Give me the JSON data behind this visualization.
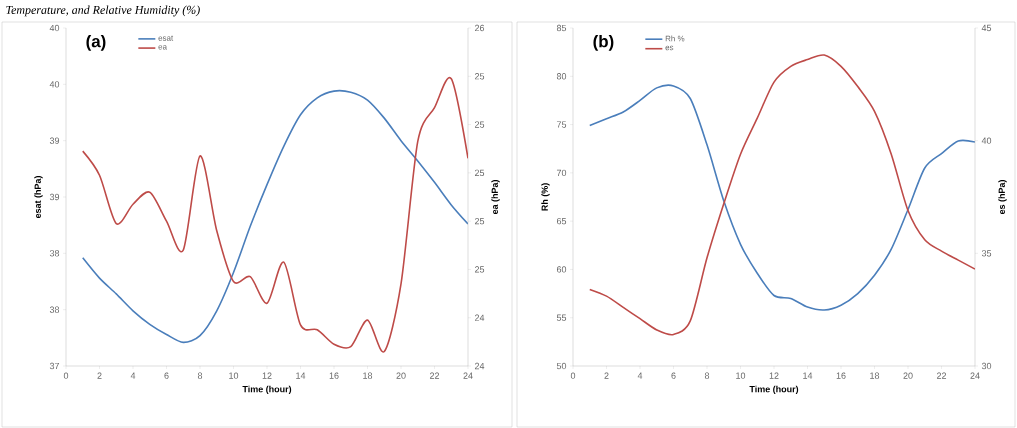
{
  "chart_data": [
    {
      "type": "line",
      "xlabel": "Time (hour)",
      "ylabel": "esat (hPa)",
      "y2label": "ea (hPa)",
      "annotations": [
        "(a)",
        "Temperature, and Relative Humidity (%)"
      ],
      "x": [
        1,
        2,
        3,
        4,
        5,
        6,
        7,
        8,
        9,
        10,
        11,
        12,
        13,
        14,
        15,
        16,
        17,
        18,
        19,
        20,
        21,
        22,
        23,
        24
      ],
      "series": [
        {
          "name": "esat",
          "color": "#4a7ebb",
          "values": [
            37.96,
            37.78,
            37.64,
            37.49,
            37.37,
            37.28,
            37.21,
            37.27,
            37.49,
            37.83,
            38.24,
            38.61,
            38.95,
            39.23,
            39.38,
            39.44,
            39.43,
            39.36,
            39.2,
            39.0,
            38.82,
            38.63,
            38.43,
            38.26
          ]
        },
        {
          "name": "ea",
          "color": "#be4b48",
          "axis": "y2",
          "values": [
            25.09,
            24.99,
            24.79,
            24.87,
            24.92,
            24.8,
            24.68,
            25.07,
            24.76,
            24.55,
            24.57,
            24.46,
            24.63,
            24.37,
            24.35,
            24.29,
            24.28,
            24.39,
            24.26,
            24.54,
            25.13,
            25.27,
            25.39,
            25.06
          ]
        }
      ],
      "xlim": [
        0,
        24
      ],
      "xticks": [
        0,
        2,
        4,
        6,
        8,
        10,
        12,
        14,
        16,
        18,
        20,
        22,
        24
      ],
      "ylim": [
        37,
        40
      ],
      "yticks": [
        37,
        {
          "value": 37.5,
          "label": "38"
        },
        38,
        {
          "value": 38.5,
          "label": "39"
        },
        39,
        {
          "value": 39.5,
          "label": "40"
        },
        40
      ],
      "y2lim": [
        24.2,
        25.6
      ],
      "y2ticks": [
        {
          "value": 24.2,
          "label": "24"
        },
        {
          "value": 24.4,
          "label": "24"
        },
        {
          "value": 24.6,
          "label": "25"
        },
        {
          "value": 24.8,
          "label": "25"
        },
        {
          "value": 25.0,
          "label": "25"
        },
        {
          "value": 25.2,
          "label": "25"
        },
        {
          "value": 25.4,
          "label": "25"
        },
        {
          "value": 25.6,
          "label": "26"
        }
      ],
      "legend": "top left",
      "grid": false,
      "marker": "none"
    },
    {
      "type": "line",
      "xlabel": "Time (hour)",
      "ylabel": "Rh (%)",
      "y2label": "es (hPa)",
      "annotations": [
        "(b)"
      ],
      "x": [
        1,
        2,
        3,
        4,
        5,
        6,
        7,
        8,
        9,
        10,
        11,
        12,
        13,
        14,
        15,
        16,
        17,
        18,
        19,
        20,
        21,
        22,
        23,
        24
      ],
      "series": [
        {
          "name": "Rh %",
          "color": "#4a7ebb",
          "values": [
            74.9,
            75.6,
            76.3,
            77.5,
            78.8,
            79.0,
            77.7,
            72.9,
            67.1,
            62.6,
            59.6,
            57.3,
            57.0,
            56.1,
            55.8,
            56.3,
            57.5,
            59.4,
            62.1,
            66.2,
            70.5,
            72.0,
            73.3,
            73.2
          ]
        },
        {
          "name": "es",
          "color": "#be4b48",
          "axis": "y2",
          "values": [
            33.4,
            33.1,
            32.6,
            32.1,
            31.6,
            31.4,
            32.0,
            34.8,
            37.2,
            39.4,
            41.0,
            42.6,
            43.3,
            43.6,
            43.8,
            43.3,
            42.4,
            41.3,
            39.4,
            36.9,
            35.6,
            35.1,
            34.7,
            34.3
          ]
        }
      ],
      "xlim": [
        0,
        24
      ],
      "xticks": [
        0,
        2,
        4,
        6,
        8,
        10,
        12,
        14,
        16,
        18,
        20,
        22,
        24
      ],
      "ylim": [
        50,
        85
      ],
      "yticks": [
        50,
        55,
        60,
        65,
        70,
        75,
        80,
        85
      ],
      "y2lim": [
        30,
        45
      ],
      "y2ticks": [
        30,
        35,
        40,
        45
      ],
      "legend": "top left",
      "grid": false,
      "marker": "none"
    }
  ]
}
